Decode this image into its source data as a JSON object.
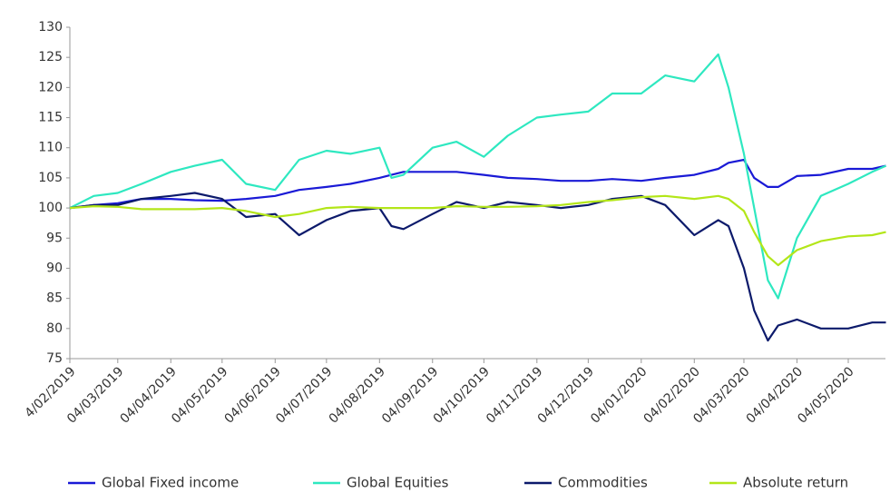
{
  "chart_data": {
    "type": "line",
    "x": [
      "04/02/2019",
      "18/02/2019",
      "04/03/2019",
      "18/03/2019",
      "04/04/2019",
      "18/04/2019",
      "04/05/2019",
      "18/05/2019",
      "04/06/2019",
      "18/06/2019",
      "04/07/2019",
      "18/07/2019",
      "04/08/2019",
      "11/08/2019",
      "18/08/2019",
      "04/09/2019",
      "18/09/2019",
      "04/10/2019",
      "18/10/2019",
      "04/11/2019",
      "18/11/2019",
      "04/12/2019",
      "18/12/2019",
      "04/01/2020",
      "18/01/2020",
      "04/02/2020",
      "18/02/2020",
      "24/02/2020",
      "04/03/2020",
      "10/03/2020",
      "18/03/2020",
      "24/03/2020",
      "04/04/2020",
      "18/04/2020",
      "04/05/2020",
      "18/05/2020",
      "26/05/2020"
    ],
    "series": [
      {
        "name": "Global Fixed income",
        "color": "#1a1ad6",
        "values": [
          100,
          100.5,
          100.8,
          101.5,
          101.5,
          101.3,
          101.2,
          101.5,
          102,
          103,
          103.5,
          104,
          105,
          105.5,
          106,
          106,
          106,
          105.5,
          105,
          104.8,
          104.5,
          104.5,
          104.8,
          104.5,
          105,
          105.5,
          106.5,
          107.5,
          108,
          105,
          103.5,
          103.5,
          105.3,
          105.5,
          106.5,
          106.5,
          107
        ]
      },
      {
        "name": "Global Equities",
        "color": "#2ee8c0",
        "values": [
          100,
          102,
          102.5,
          104,
          106,
          107,
          108,
          104,
          103,
          108,
          109.5,
          109,
          110,
          105,
          105.5,
          110,
          111,
          108.5,
          112,
          115,
          115.5,
          116,
          119,
          119,
          122,
          121,
          125.5,
          120,
          109,
          100,
          88,
          85,
          95,
          102,
          104,
          106,
          107
        ]
      },
      {
        "name": "Commodities",
        "color": "#0c1a6b",
        "values": [
          100,
          100.5,
          100.5,
          101.5,
          102,
          102.5,
          101.5,
          98.5,
          99,
          95.5,
          98,
          99.5,
          100,
          97,
          96.5,
          99,
          101,
          100,
          101,
          100.5,
          100,
          100.5,
          101.5,
          102,
          100.5,
          95.5,
          98,
          97,
          90,
          83,
          78,
          80.5,
          81.5,
          80,
          80,
          81,
          81
        ]
      },
      {
        "name": "Absolute return",
        "color": "#b3e619",
        "values": [
          100,
          100.3,
          100.2,
          99.8,
          99.8,
          99.8,
          100,
          99.5,
          98.5,
          99,
          100,
          100.2,
          100,
          100,
          100,
          100,
          100.3,
          100.2,
          100.2,
          100.3,
          100.5,
          101,
          101.3,
          101.8,
          102,
          101.5,
          102,
          101.5,
          99.5,
          96,
          92,
          90.5,
          93,
          94.5,
          95.3,
          95.5,
          96
        ]
      }
    ],
    "xticks": [
      "4/02/2019",
      "04/03/2019",
      "04/04/2019",
      "04/05/2019",
      "04/06/2019",
      "04/07/2019",
      "04/08/2019",
      "04/09/2019",
      "04/10/2019",
      "04/11/2019",
      "04/12/2019",
      "04/01/2020",
      "04/02/2020",
      "04/03/2020",
      "04/04/2020",
      "04/05/2020"
    ],
    "ylim": [
      75,
      130
    ],
    "yticks": [
      75,
      80,
      85,
      90,
      95,
      100,
      105,
      110,
      115,
      120,
      125,
      130
    ],
    "grid": false,
    "legend": "bottom"
  }
}
